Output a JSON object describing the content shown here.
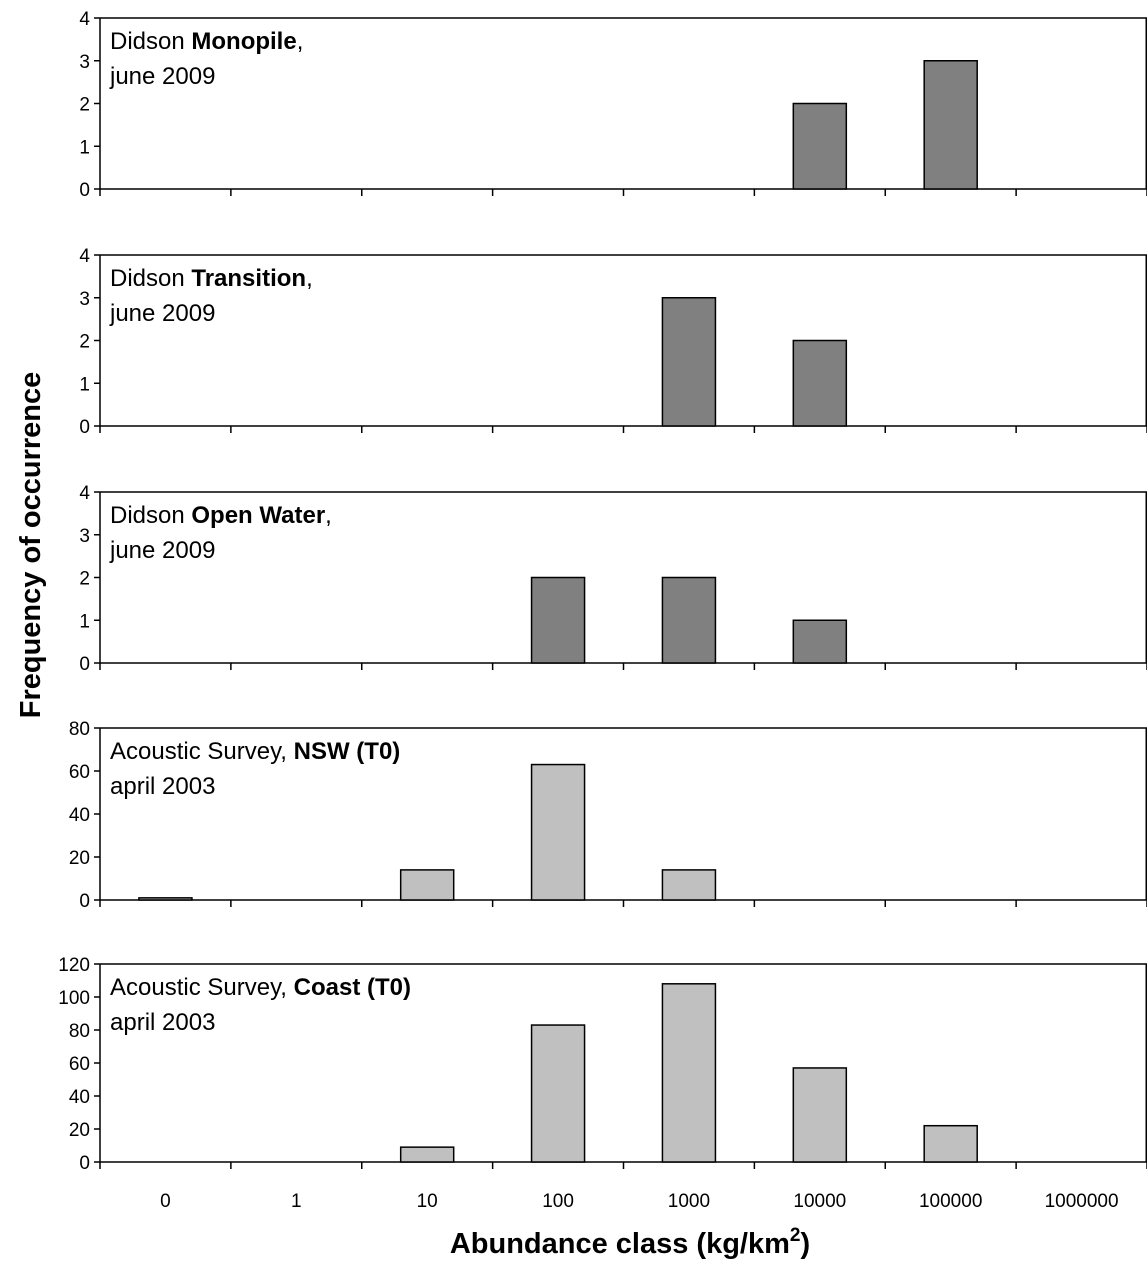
{
  "chart_data": {
    "type": "bar",
    "xlabel_main": "Abundance class (kg/km",
    "xlabel_sup": "2",
    "xlabel_tail": ")",
    "ylabel": "Frequency of occurrence",
    "categories": [
      "0",
      "1",
      "10",
      "100",
      "1000",
      "10000",
      "100000",
      "1000000"
    ],
    "colors": {
      "dark_bar": "#808080",
      "light_bar": "#c0c0c0",
      "axis": "#000000"
    },
    "panels": [
      {
        "label_prefix": "Didson ",
        "label_bold": "Monopile",
        "label_suffix": ",",
        "label_line2": "june 2009",
        "ylim": [
          0,
          4
        ],
        "yticks": [
          0,
          1,
          2,
          3,
          4
        ],
        "bar_color": "dark",
        "values": [
          0,
          0,
          0,
          0,
          0,
          2,
          3,
          0
        ]
      },
      {
        "label_prefix": "Didson ",
        "label_bold": "Transition",
        "label_suffix": ",",
        "label_line2": "june 2009",
        "ylim": [
          0,
          4
        ],
        "yticks": [
          0,
          1,
          2,
          3,
          4
        ],
        "bar_color": "dark",
        "values": [
          0,
          0,
          0,
          0,
          3,
          2,
          0,
          0
        ]
      },
      {
        "label_prefix": "Didson ",
        "label_bold": "Open Water",
        "label_suffix": ",",
        "label_line2": "june 2009",
        "ylim": [
          0,
          4
        ],
        "yticks": [
          0,
          1,
          2,
          3,
          4
        ],
        "bar_color": "dark",
        "values": [
          0,
          0,
          0,
          2,
          2,
          1,
          0,
          0
        ]
      },
      {
        "label_prefix": "Acoustic Survey, ",
        "label_bold": "NSW (T0)",
        "label_suffix": "",
        "label_line2": "april 2003",
        "ylim": [
          0,
          80
        ],
        "yticks": [
          0,
          20,
          40,
          60,
          80
        ],
        "bar_color": "light",
        "values": [
          1,
          0,
          14,
          63,
          14,
          0,
          0,
          0
        ]
      },
      {
        "label_prefix": "Acoustic Survey, ",
        "label_bold": "Coast (T0)",
        "label_suffix": "",
        "label_line2": "april 2003",
        "ylim": [
          0,
          120
        ],
        "yticks": [
          0,
          20,
          40,
          60,
          80,
          100,
          120
        ],
        "bar_color": "light",
        "values": [
          0,
          0,
          9,
          83,
          108,
          57,
          22,
          0
        ]
      }
    ]
  }
}
